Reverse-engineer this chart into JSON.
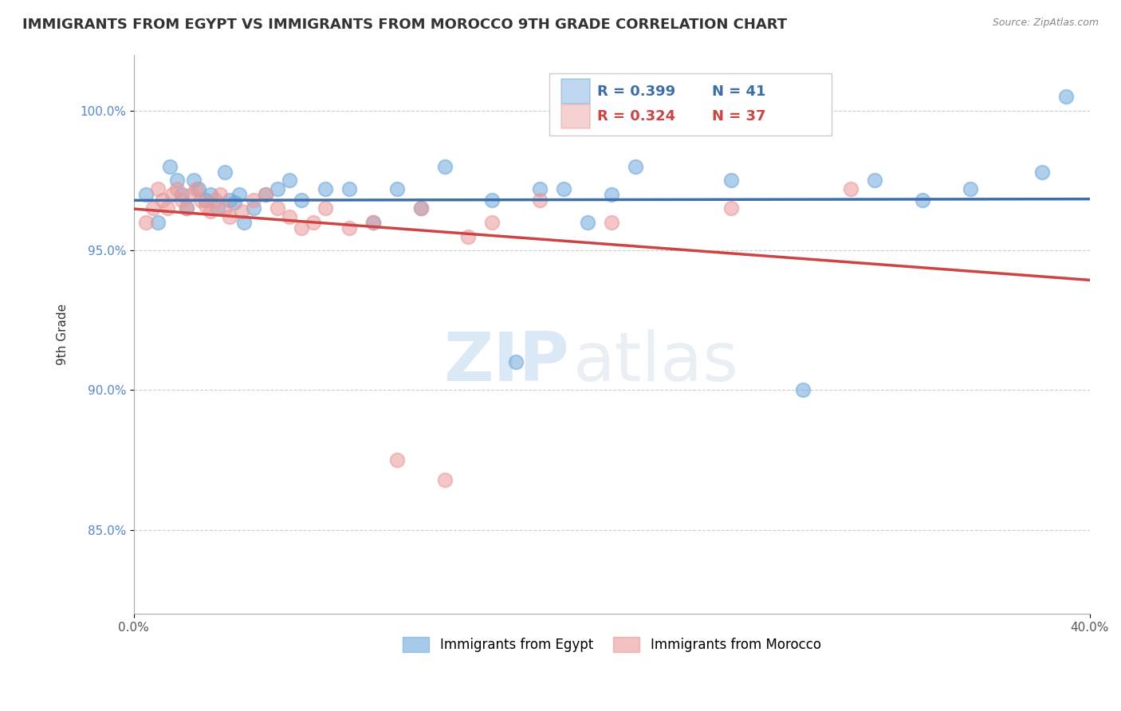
{
  "title": "IMMIGRANTS FROM EGYPT VS IMMIGRANTS FROM MOROCCO 9TH GRADE CORRELATION CHART",
  "source": "Source: ZipAtlas.com",
  "ylabel": "9th Grade",
  "xlim": [
    0.0,
    0.4
  ],
  "ylim": [
    0.82,
    1.02
  ],
  "egypt_R": 0.399,
  "egypt_N": 41,
  "morocco_R": 0.324,
  "morocco_N": 37,
  "egypt_color": "#6fa8dc",
  "morocco_color": "#ea9999",
  "egypt_line_color": "#3d6eaa",
  "morocco_line_color": "#cc4444",
  "watermark_zip": "ZIP",
  "watermark_atlas": "atlas",
  "legend_egypt": "Immigrants from Egypt",
  "legend_morocco": "Immigrants from Morocco",
  "egypt_points_x": [
    0.005,
    0.01,
    0.015,
    0.018,
    0.02,
    0.022,
    0.025,
    0.027,
    0.03,
    0.032,
    0.035,
    0.038,
    0.04,
    0.042,
    0.044,
    0.046,
    0.05,
    0.055,
    0.06,
    0.065,
    0.07,
    0.08,
    0.09,
    0.1,
    0.11,
    0.12,
    0.13,
    0.15,
    0.16,
    0.17,
    0.18,
    0.19,
    0.2,
    0.21,
    0.25,
    0.28,
    0.31,
    0.33,
    0.35,
    0.38,
    0.39
  ],
  "egypt_points_y": [
    0.97,
    0.96,
    0.98,
    0.975,
    0.97,
    0.965,
    0.975,
    0.972,
    0.968,
    0.97,
    0.965,
    0.978,
    0.968,
    0.967,
    0.97,
    0.96,
    0.965,
    0.97,
    0.972,
    0.975,
    0.968,
    0.972,
    0.972,
    0.96,
    0.972,
    0.965,
    0.98,
    0.968,
    0.91,
    0.972,
    0.972,
    0.96,
    0.97,
    0.98,
    0.975,
    0.9,
    0.975,
    0.968,
    0.972,
    0.978,
    1.005
  ],
  "morocco_points_x": [
    0.005,
    0.008,
    0.01,
    0.012,
    0.014,
    0.016,
    0.018,
    0.02,
    0.022,
    0.024,
    0.026,
    0.028,
    0.03,
    0.032,
    0.034,
    0.036,
    0.038,
    0.04,
    0.045,
    0.05,
    0.055,
    0.06,
    0.065,
    0.07,
    0.075,
    0.08,
    0.09,
    0.1,
    0.11,
    0.12,
    0.13,
    0.14,
    0.15,
    0.17,
    0.2,
    0.25,
    0.3
  ],
  "morocco_points_y": [
    0.96,
    0.965,
    0.972,
    0.968,
    0.965,
    0.97,
    0.972,
    0.968,
    0.965,
    0.97,
    0.972,
    0.968,
    0.966,
    0.964,
    0.968,
    0.97,
    0.965,
    0.962,
    0.964,
    0.968,
    0.97,
    0.965,
    0.962,
    0.958,
    0.96,
    0.965,
    0.958,
    0.96,
    0.875,
    0.965,
    0.868,
    0.955,
    0.96,
    0.968,
    0.96,
    0.965,
    0.972
  ]
}
